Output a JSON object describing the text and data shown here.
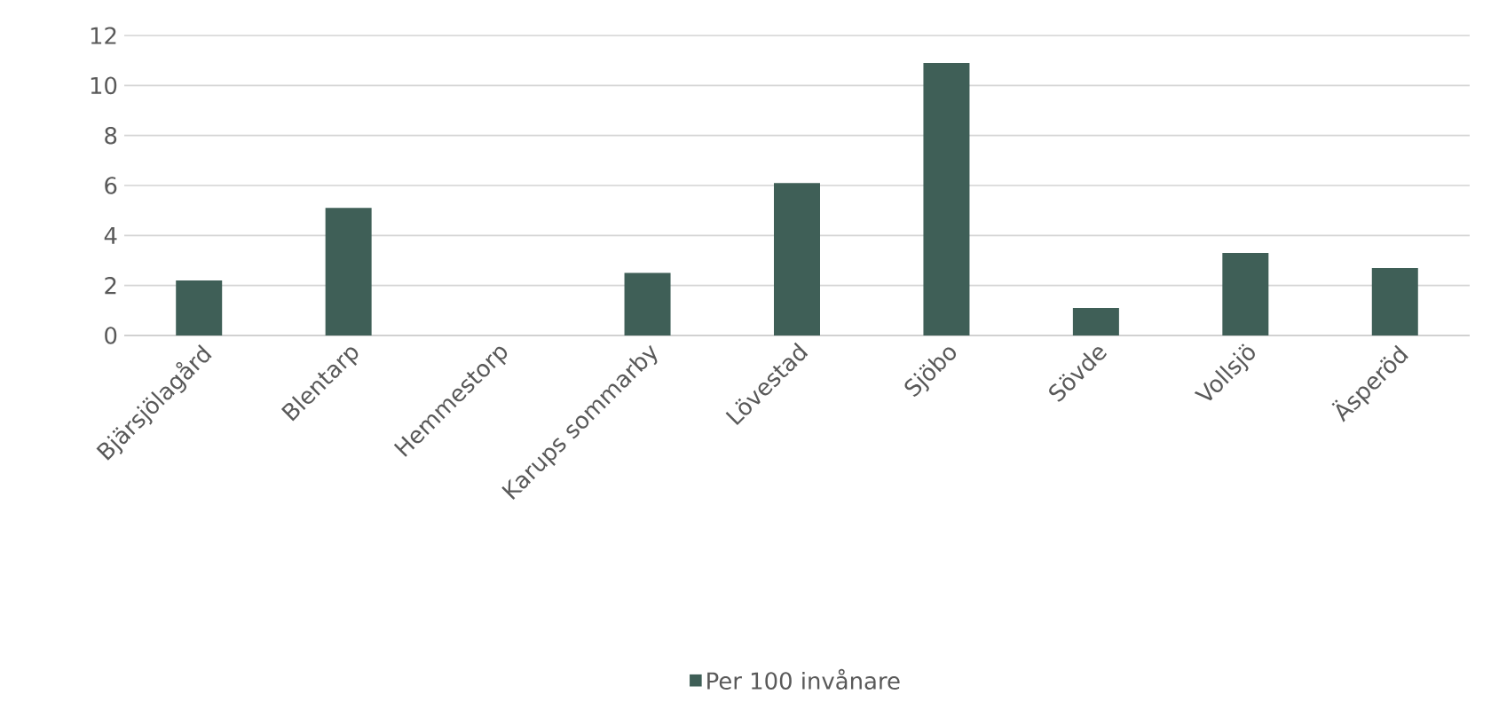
{
  "chart_data": {
    "type": "bar",
    "categories": [
      "Bjärsjölagård",
      "Blentarp",
      "Hemmestorp",
      "Karups sommarby",
      "Lövestad",
      "Sjöbo",
      "Sövde",
      "Vollsjö",
      "Äsperöd"
    ],
    "series": [
      {
        "name": "Per 100 invånare",
        "color": "#3f5f57",
        "values": [
          2.2,
          5.1,
          0,
          2.5,
          6.1,
          10.9,
          1.1,
          3.3,
          2.7
        ]
      }
    ],
    "ylim": [
      0,
      12
    ],
    "yticks": [
      0,
      2,
      4,
      6,
      8,
      10,
      12
    ],
    "grid": "y",
    "legend": "bottom"
  }
}
